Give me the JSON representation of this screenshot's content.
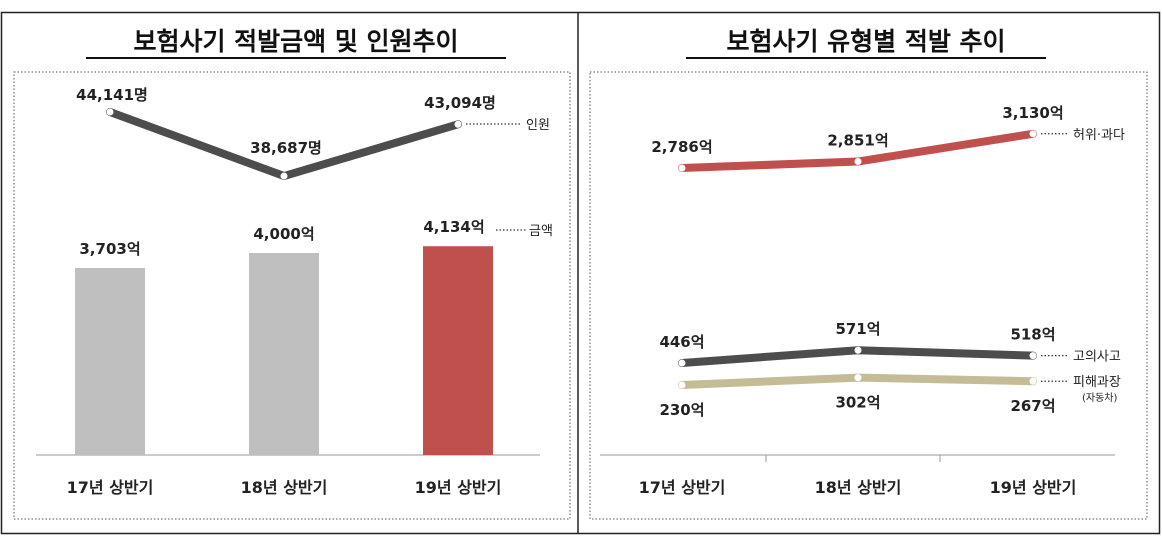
{
  "chart_data": [
    {
      "type": "bar",
      "title": "보험사기 적발금액 및 인원추이",
      "categories": [
        "17년 상반기",
        "18년 상반기",
        "19년 상반기"
      ],
      "series": [
        {
          "name": "금액",
          "kind": "bar",
          "values": [
            3703,
            4000,
            4134
          ],
          "labels": [
            "3,703억",
            "4,000억",
            "4,134억"
          ],
          "colors": [
            "#bfbfbf",
            "#bfbfbf",
            "#c0504d"
          ]
        },
        {
          "name": "인원",
          "kind": "line",
          "values": [
            44141,
            38687,
            43094
          ],
          "labels": [
            "44,141명",
            "38,687명",
            "43,094명"
          ],
          "color": "#4d4d4d"
        }
      ]
    },
    {
      "type": "line",
      "title": "보험사기 유형별 적발 추이",
      "categories": [
        "17년 상반기",
        "18년 상반기",
        "19년 상반기"
      ],
      "series": [
        {
          "name": "허위·과다",
          "values": [
            2786,
            2851,
            3130
          ],
          "labels": [
            "2,786억",
            "2,851억",
            "3,130억"
          ],
          "color": "#c0504d"
        },
        {
          "name": "고의사고",
          "values": [
            446,
            571,
            518
          ],
          "labels": [
            "446억",
            "571억",
            "518억"
          ],
          "color": "#4d4d4d"
        },
        {
          "name": "피해과장",
          "note": "(자동차)",
          "values": [
            230,
            302,
            267
          ],
          "labels": [
            "230억",
            "302억",
            "267억"
          ],
          "color": "#c4bc96"
        }
      ]
    }
  ]
}
